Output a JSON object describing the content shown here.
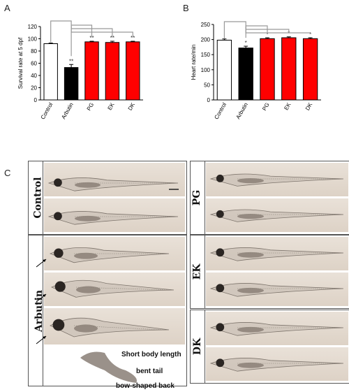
{
  "panels": {
    "a": "A",
    "b": "B",
    "c": "C"
  },
  "chart_data": [
    {
      "type": "bar",
      "title": "",
      "xlabel": "",
      "ylabel": "Survival rate at 5 dpf",
      "categories": [
        "Control",
        "Arbutin",
        "PG",
        "EK",
        "DK"
      ],
      "values": [
        92,
        53,
        95,
        94,
        95
      ],
      "errors": [
        1,
        5,
        1,
        2,
        1
      ],
      "significance": [
        "",
        "**",
        "**",
        "**",
        "**"
      ],
      "ylim": [
        0,
        120
      ],
      "yticks": [
        0,
        20,
        40,
        60,
        80,
        100,
        120
      ],
      "bar_colors": [
        "#ffffff",
        "#000000",
        "#ff0000",
        "#ff0000",
        "#ff0000"
      ],
      "grid": false,
      "legend": "none"
    },
    {
      "type": "bar",
      "title": "",
      "xlabel": "",
      "ylabel": "Heart rate/min",
      "categories": [
        "Control",
        "Arbutin",
        "PG",
        "EK",
        "DK"
      ],
      "values": [
        198,
        172,
        203,
        206,
        203
      ],
      "errors": [
        4,
        6,
        3,
        3,
        3
      ],
      "significance": [
        "",
        "*",
        "*",
        "*",
        "*"
      ],
      "ylim": [
        0,
        250
      ],
      "yticks": [
        0,
        50,
        100,
        150,
        200,
        250
      ],
      "bar_colors": [
        "#ffffff",
        "#000000",
        "#ff0000",
        "#ff0000",
        "#ff0000"
      ],
      "grid": false,
      "legend": "none"
    }
  ],
  "figure_c": {
    "groups": {
      "control": "Control",
      "arbutin": "Arbutin",
      "pg": "PG",
      "ek": "EK",
      "dk": "DK"
    },
    "annotations": {
      "short_body": "Short body length",
      "bent_tail": "bent tail",
      "bow_back": "bow-shaped back"
    }
  }
}
